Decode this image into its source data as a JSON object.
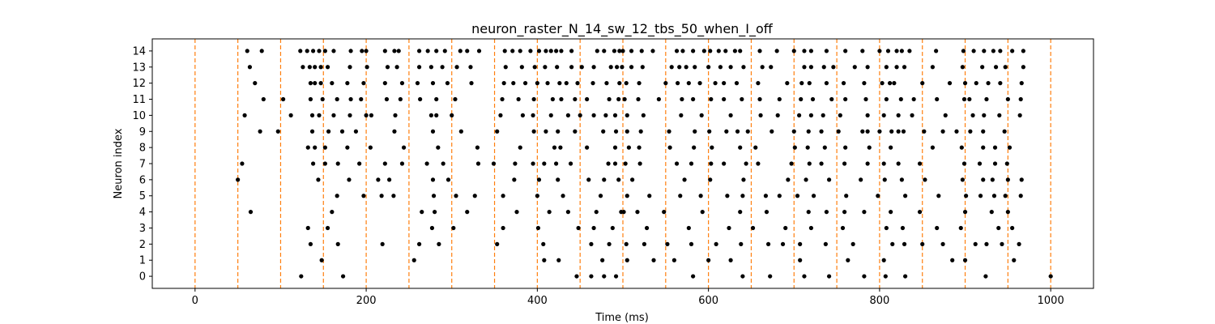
{
  "chart_data": {
    "type": "scatter",
    "title": "neuron_raster_N_14_sw_12_tbs_50_when_I_off",
    "xlabel": "Time (ms)",
    "ylabel": "Neuron index",
    "xlim": [
      -50,
      1050
    ],
    "ylim": [
      -0.75,
      14.75
    ],
    "xticks": [
      0,
      200,
      400,
      600,
      800,
      1000
    ],
    "yticks": [
      0,
      1,
      2,
      3,
      4,
      5,
      6,
      7,
      8,
      9,
      10,
      11,
      12,
      13,
      14
    ],
    "grid": false,
    "point_color": "#000000",
    "vline_color": "#ff7f0e",
    "vlines": [
      0,
      50,
      100,
      150,
      200,
      250,
      300,
      350,
      400,
      450,
      500,
      550,
      600,
      650,
      700,
      750,
      800,
      850,
      900,
      950,
      1000
    ],
    "spikes": [
      {
        "neuron": 14,
        "times": [
          61,
          78,
          123,
          131,
          138,
          145,
          152,
          162,
          182,
          195,
          200,
          222,
          233,
          238,
          262,
          272,
          282,
          292,
          310,
          318,
          332,
          362,
          371,
          380,
          392,
          402,
          410,
          416,
          422,
          428,
          440,
          470,
          478,
          490,
          496,
          500,
          510,
          522,
          535,
          563,
          570,
          582,
          595,
          602,
          612,
          620,
          631,
          637,
          660,
          680,
          700,
          712,
          720,
          738,
          760,
          780,
          800,
          810,
          820,
          826,
          835,
          866,
          898,
          910,
          922,
          933,
          941,
          955,
          968
        ]
      },
      {
        "neuron": 13,
        "times": [
          64,
          126,
          134,
          140,
          147,
          155,
          181,
          201,
          225,
          236,
          262,
          276,
          289,
          306,
          322,
          363,
          382,
          397,
          409,
          423,
          440,
          452,
          466,
          486,
          493,
          499,
          510,
          523,
          557,
          566,
          574,
          584,
          600,
          614,
          626,
          641,
          663,
          673,
          712,
          720,
          735,
          746,
          771,
          786,
          808,
          820,
          829,
          862,
          897,
          920,
          936,
          947,
          968
        ]
      },
      {
        "neuron": 12,
        "times": [
          70,
          135,
          140,
          147,
          160,
          178,
          197,
          222,
          242,
          260,
          278,
          295,
          323,
          361,
          372,
          386,
          400,
          412,
          426,
          434,
          447,
          465,
          481,
          496,
          504,
          519,
          550,
          564,
          577,
          590,
          608,
          618,
          633,
          658,
          692,
          709,
          718,
          738,
          758,
          782,
          803,
          812,
          817,
          850,
          882,
          900,
          913,
          927,
          941,
          966
        ]
      },
      {
        "neuron": 11,
        "times": [
          80,
          103,
          135,
          149,
          166,
          182,
          194,
          224,
          240,
          263,
          282,
          304,
          359,
          378,
          396,
          418,
          428,
          444,
          458,
          484,
          495,
          502,
          518,
          542,
          569,
          582,
          603,
          618,
          639,
          660,
          683,
          708,
          722,
          744,
          760,
          784,
          808,
          825,
          840,
          867,
          899,
          905,
          925,
          950,
          965
        ]
      },
      {
        "neuron": 10,
        "times": [
          58,
          112,
          137,
          145,
          162,
          181,
          200,
          206,
          234,
          276,
          282,
          300,
          357,
          383,
          395,
          416,
          436,
          450,
          466,
          480,
          491,
          505,
          524,
          568,
          592,
          626,
          661,
          681,
          706,
          720,
          734,
          754,
          786,
          805,
          822,
          838,
          877,
          909,
          922,
          940,
          964
        ]
      },
      {
        "neuron": 9,
        "times": [
          76,
          97,
          137,
          156,
          172,
          188,
          233,
          278,
          311,
          353,
          396,
          410,
          424,
          444,
          477,
          492,
          505,
          521,
          554,
          584,
          601,
          621,
          634,
          646,
          674,
          700,
          717,
          732,
          752,
          780,
          786,
          800,
          814,
          822,
          828,
          852,
          874,
          890,
          906,
          921,
          946
        ]
      },
      {
        "neuron": 8,
        "times": [
          132,
          140,
          152,
          178,
          205,
          244,
          284,
          330,
          380,
          420,
          427,
          458,
          491,
          507,
          519,
          555,
          583,
          604,
          637,
          655,
          701,
          716,
          736,
          760,
          788,
          813,
          862,
          896,
          921,
          935,
          952
        ]
      },
      {
        "neuron": 7,
        "times": [
          55,
          138,
          152,
          167,
          192,
          222,
          242,
          271,
          290,
          331,
          349,
          374,
          395,
          408,
          422,
          439,
          483,
          491,
          503,
          520,
          563,
          580,
          603,
          618,
          644,
          658,
          697,
          718,
          732,
          759,
          786,
          805,
          822,
          847,
          899,
          917,
          935,
          949
        ]
      },
      {
        "neuron": 6,
        "times": [
          50,
          144,
          180,
          214,
          227,
          278,
          296,
          373,
          402,
          424,
          460,
          478,
          495,
          511,
          572,
          602,
          641,
          693,
          714,
          741,
          778,
          806,
          826,
          853,
          897,
          921,
          932,
          950,
          966
        ]
      },
      {
        "neuron": 5,
        "times": [
          166,
          197,
          218,
          232,
          279,
          305,
          327,
          360,
          400,
          430,
          474,
          505,
          531,
          567,
          591,
          622,
          640,
          667,
          683,
          704,
          723,
          761,
          798,
          830,
          869,
          901,
          918,
          934,
          947,
          965
        ]
      },
      {
        "neuron": 4,
        "times": [
          65,
          160,
          265,
          280,
          318,
          376,
          414,
          436,
          469,
          498,
          501,
          517,
          548,
          593,
          637,
          668,
          717,
          738,
          759,
          782,
          813,
          847,
          900,
          931,
          950
        ]
      },
      {
        "neuron": 3,
        "times": [
          132,
          155,
          277,
          302,
          360,
          401,
          448,
          466,
          488,
          528,
          577,
          624,
          652,
          690,
          720,
          757,
          808,
          827,
          867,
          895,
          939,
          955
        ]
      },
      {
        "neuron": 2,
        "times": [
          135,
          167,
          219,
          262,
          285,
          353,
          407,
          463,
          484,
          504,
          525,
          552,
          580,
          609,
          638,
          670,
          687,
          707,
          737,
          769,
          815,
          829,
          850,
          874,
          912,
          925,
          943,
          963
        ]
      },
      {
        "neuron": 1,
        "times": [
          148,
          256,
          408,
          425,
          476,
          505,
          536,
          560,
          600,
          626,
          707,
          763,
          805,
          885,
          900,
          957
        ]
      },
      {
        "neuron": 0,
        "times": [
          124,
          173,
          446,
          463,
          478,
          492,
          582,
          640,
          672,
          712,
          741,
          782,
          807,
          830,
          924,
          1000
        ]
      }
    ]
  }
}
